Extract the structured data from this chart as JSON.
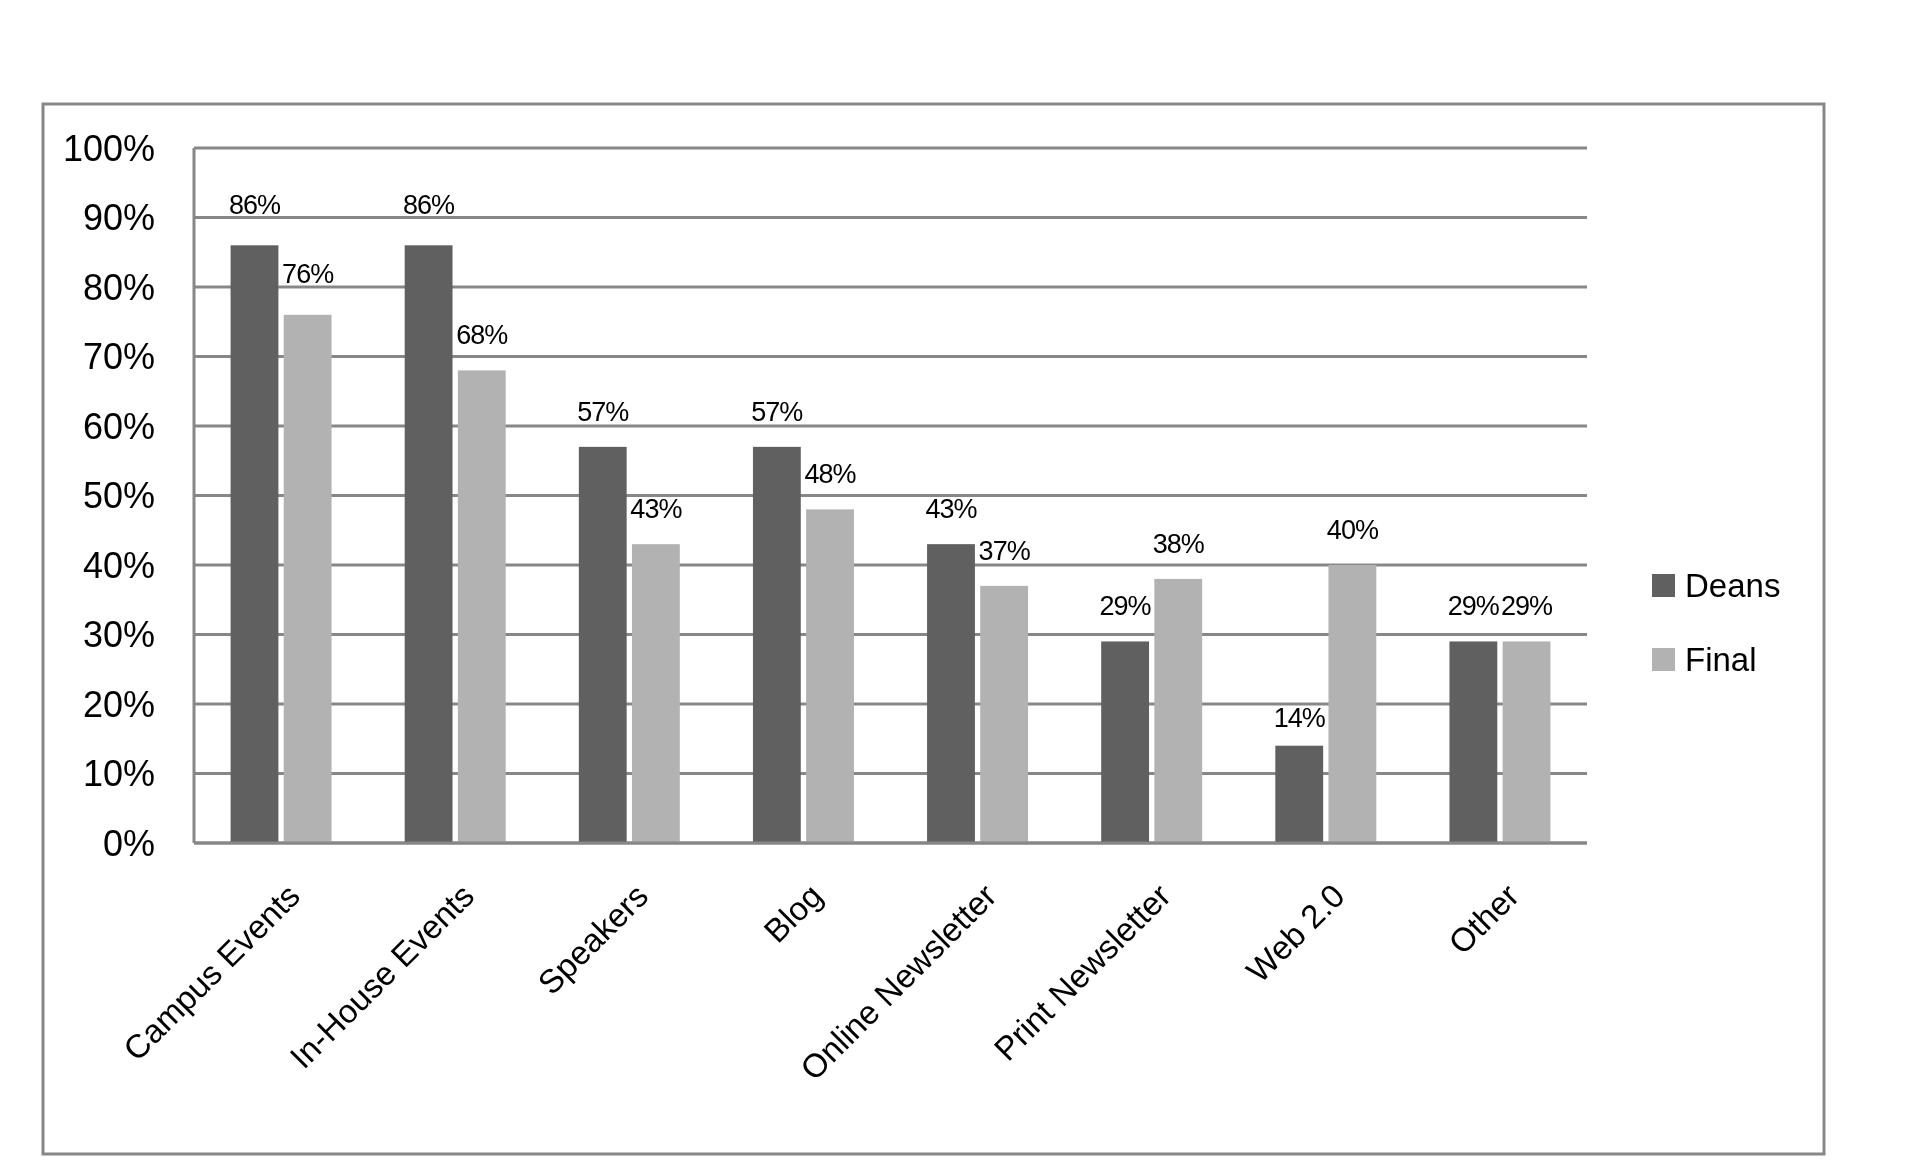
{
  "chart_data": {
    "type": "bar",
    "categories": [
      "Campus Events",
      "In-House Events",
      "Speakers",
      "Blog",
      "Online Newsletter",
      "Print Newsletter",
      "Web 2.0",
      "Other"
    ],
    "series": [
      {
        "name": "Deans",
        "color": "#606060",
        "values": [
          86,
          86,
          57,
          57,
          43,
          29,
          14,
          29
        ],
        "value_labels": [
          "86%",
          "86%",
          "57%",
          "57%",
          "43%",
          "29%",
          "14%",
          "29%"
        ]
      },
      {
        "name": "Final",
        "color": "#b2b2b2",
        "values": [
          76,
          68,
          43,
          48,
          37,
          38,
          40,
          29
        ],
        "value_labels": [
          "76%",
          "68%",
          "43%",
          "48%",
          "37%",
          "38%",
          "40%",
          "29%"
        ]
      }
    ],
    "ylim": [
      0,
      100
    ],
    "yticks": [
      {
        "value": 0,
        "label": "0%"
      },
      {
        "value": 10,
        "label": "10%"
      },
      {
        "value": 20,
        "label": "20%"
      },
      {
        "value": 30,
        "label": "30%"
      },
      {
        "value": 40,
        "label": "40%"
      },
      {
        "value": 50,
        "label": "50%"
      },
      {
        "value": 60,
        "label": "60%"
      },
      {
        "value": 70,
        "label": "70%"
      },
      {
        "value": 80,
        "label": "80%"
      },
      {
        "value": 90,
        "label": "90%"
      },
      {
        "value": 100,
        "label": "100%"
      }
    ],
    "grid": "y",
    "legend": "right"
  }
}
